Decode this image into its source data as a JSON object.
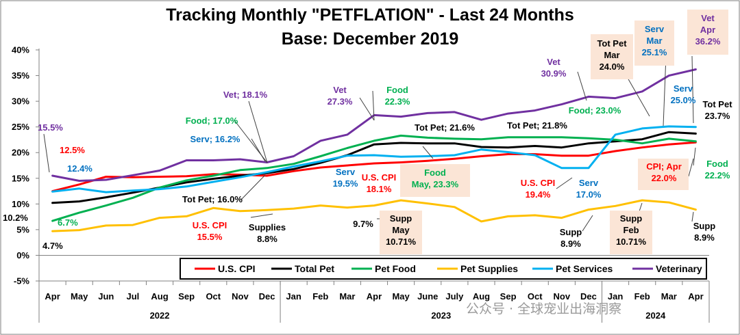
{
  "chart_data": {
    "type": "line",
    "title": "Tracking Monthly \"PETFLATION\" - Last 24 Months",
    "subtitle": "Base: December 2019",
    "categories": [
      "Apr",
      "May",
      "Jun",
      "Jul",
      "Aug",
      "Sep",
      "Oct",
      "Nov",
      "Dec",
      "Jan",
      "Feb",
      "Mar",
      "Apr",
      "May",
      "June",
      "July",
      "Aug",
      "Sep",
      "Oct",
      "Nov",
      "Dec",
      "Jan",
      "Feb",
      "Mar",
      "Apr"
    ],
    "year_groups": [
      {
        "label": "2022",
        "from": 0,
        "to": 8
      },
      {
        "label": "2023",
        "from": 9,
        "to": 20
      },
      {
        "label": "2024",
        "from": 21,
        "to": 24
      }
    ],
    "y_ticks": [
      "-5%",
      "0%",
      "5%",
      "10%",
      "15%",
      "20%",
      "25%",
      "30%",
      "35%",
      "40%"
    ],
    "ylim": [
      -5,
      40
    ],
    "grid": false,
    "legend_position": "bottom",
    "series": [
      {
        "name": "U.S. CPI",
        "color": "#ff0000",
        "values": [
          12.5,
          13.8,
          15.3,
          15.2,
          15.3,
          15.4,
          15.8,
          15.7,
          15.5,
          16.4,
          17.1,
          17.5,
          17.9,
          18.1,
          18.4,
          18.8,
          19.3,
          19.7,
          19.7,
          19.4,
          19.4,
          20.3,
          21.0,
          21.6,
          22.0
        ]
      },
      {
        "name": "Total Pet",
        "color": "#000000",
        "values": [
          10.2,
          10.5,
          11.3,
          12.2,
          13.2,
          14.2,
          14.9,
          15.5,
          16.0,
          16.8,
          18.0,
          19.5,
          21.6,
          21.9,
          21.8,
          21.8,
          21.1,
          21.0,
          21.3,
          21.0,
          21.8,
          22.2,
          22.6,
          24.0,
          23.7
        ]
      },
      {
        "name": "Pet Food",
        "color": "#00b050",
        "values": [
          6.7,
          8.3,
          9.7,
          11.2,
          13.2,
          14.6,
          15.5,
          16.6,
          17.0,
          17.8,
          19.3,
          20.9,
          22.3,
          23.3,
          22.9,
          22.7,
          22.6,
          23.0,
          23.0,
          23.0,
          22.8,
          22.5,
          21.8,
          22.7,
          22.2
        ]
      },
      {
        "name": "Pet Supplies",
        "color": "#ffc000",
        "values": [
          4.7,
          4.9,
          5.8,
          5.9,
          7.3,
          7.6,
          9.2,
          8.6,
          8.8,
          9.1,
          9.7,
          9.3,
          9.7,
          10.71,
          10.1,
          9.4,
          6.6,
          7.6,
          7.8,
          7.3,
          8.9,
          9.6,
          10.71,
          10.3,
          8.9
        ]
      },
      {
        "name": "Pet Services",
        "color": "#00b0f0",
        "values": [
          12.4,
          13.0,
          12.3,
          12.6,
          12.9,
          13.4,
          14.3,
          15.2,
          16.2,
          17.3,
          18.3,
          19.4,
          19.5,
          19.2,
          19.3,
          19.5,
          20.6,
          20.1,
          19.5,
          17.0,
          17.0,
          23.5,
          24.7,
          25.1,
          25.0
        ]
      },
      {
        "name": "Veterinary",
        "color": "#7030a0",
        "values": [
          15.5,
          14.5,
          14.7,
          15.6,
          16.5,
          18.5,
          18.5,
          18.7,
          18.1,
          19.3,
          22.3,
          23.5,
          27.3,
          27.0,
          27.7,
          27.9,
          26.4,
          27.6,
          28.2,
          29.4,
          30.9,
          30.6,
          31.9,
          35.0,
          36.2
        ]
      }
    ],
    "annotations": [
      {
        "lines": [
          "15.5%"
        ],
        "color": "#7030a0",
        "box": false
      },
      {
        "lines": [
          "12.5%"
        ],
        "color": "#ff0000",
        "box": false
      },
      {
        "lines": [
          "12.4%"
        ],
        "color": "#0070c0",
        "box": false
      },
      {
        "lines": [
          "10.2%"
        ],
        "color": "#000000",
        "box": false
      },
      {
        "lines": [
          "6.7%"
        ],
        "color": "#00b050",
        "box": false
      },
      {
        "lines": [
          "4.7%"
        ],
        "color": "#000000",
        "box": false
      },
      {
        "lines": [
          "Vet; 18.1%"
        ],
        "color": "#7030a0",
        "box": false
      },
      {
        "lines": [
          "Food; 17.0%"
        ],
        "color": "#00b050",
        "box": false
      },
      {
        "lines": [
          "Serv; 16.2%"
        ],
        "color": "#0070c0",
        "box": false
      },
      {
        "lines": [
          "Tot Pet; 16.0%"
        ],
        "color": "#000000",
        "box": false
      },
      {
        "lines": [
          "U.S. CPI",
          "15.5%"
        ],
        "color": "#ff0000",
        "box": false
      },
      {
        "lines": [
          "Supplies",
          "8.8%"
        ],
        "color": "#000000",
        "box": false
      },
      {
        "lines": [
          "Vet",
          "27.3%"
        ],
        "color": "#7030a0",
        "box": false
      },
      {
        "lines": [
          "Food",
          "22.3%"
        ],
        "color": "#00b050",
        "box": false
      },
      {
        "lines": [
          "Tot Pet; 21.6%"
        ],
        "color": "#000000",
        "box": false
      },
      {
        "lines": [
          "Serv",
          "19.5%"
        ],
        "color": "#0070c0",
        "box": false
      },
      {
        "lines": [
          "U.S. CPI",
          "18.1%"
        ],
        "color": "#ff0000",
        "box": false
      },
      {
        "lines": [
          "Food",
          "May, 23.3%"
        ],
        "color": "#00b050",
        "box": true
      },
      {
        "lines": [
          "9.7%"
        ],
        "color": "#000000",
        "box": false
      },
      {
        "lines": [
          "Supp",
          "May",
          "10.71%"
        ],
        "color": "#000000",
        "box": true
      },
      {
        "lines": [
          "Vet",
          "30.9%"
        ],
        "color": "#7030a0",
        "box": false
      },
      {
        "lines": [
          "Food; 23.0%"
        ],
        "color": "#00b050",
        "box": false
      },
      {
        "lines": [
          "Tot Pet; 21.8%"
        ],
        "color": "#000000",
        "box": false
      },
      {
        "lines": [
          "U.S. CPI",
          "19.4%"
        ],
        "color": "#ff0000",
        "box": false
      },
      {
        "lines": [
          "Serv",
          "17.0%"
        ],
        "color": "#0070c0",
        "box": false
      },
      {
        "lines": [
          "Supp",
          "8.9%"
        ],
        "color": "#000000",
        "box": false
      },
      {
        "lines": [
          "Tot Pet",
          "Mar",
          "24.0%"
        ],
        "color": "#000000",
        "box": true
      },
      {
        "lines": [
          "Serv",
          "Mar",
          "25.1%"
        ],
        "color": "#0070c0",
        "box": true
      },
      {
        "lines": [
          "Vet",
          "Apr",
          "36.2%"
        ],
        "color": "#7030a0",
        "box": true
      },
      {
        "lines": [
          "Serv",
          "25.0%"
        ],
        "color": "#0070c0",
        "box": false
      },
      {
        "lines": [
          "Tot Pet",
          "23.7%"
        ],
        "color": "#000000",
        "box": false
      },
      {
        "lines": [
          "CPI; Apr",
          "22.0%"
        ],
        "color": "#ff0000",
        "box": true
      },
      {
        "lines": [
          "Food",
          "22.2%"
        ],
        "color": "#00b050",
        "box": false
      },
      {
        "lines": [
          "Supp",
          "Feb",
          "10.71%"
        ],
        "color": "#000000",
        "box": true
      },
      {
        "lines": [
          "Supp",
          "8.9%"
        ],
        "color": "#000000",
        "box": false
      }
    ],
    "watermark": "公众号 · 全球宠业出海洞察"
  }
}
